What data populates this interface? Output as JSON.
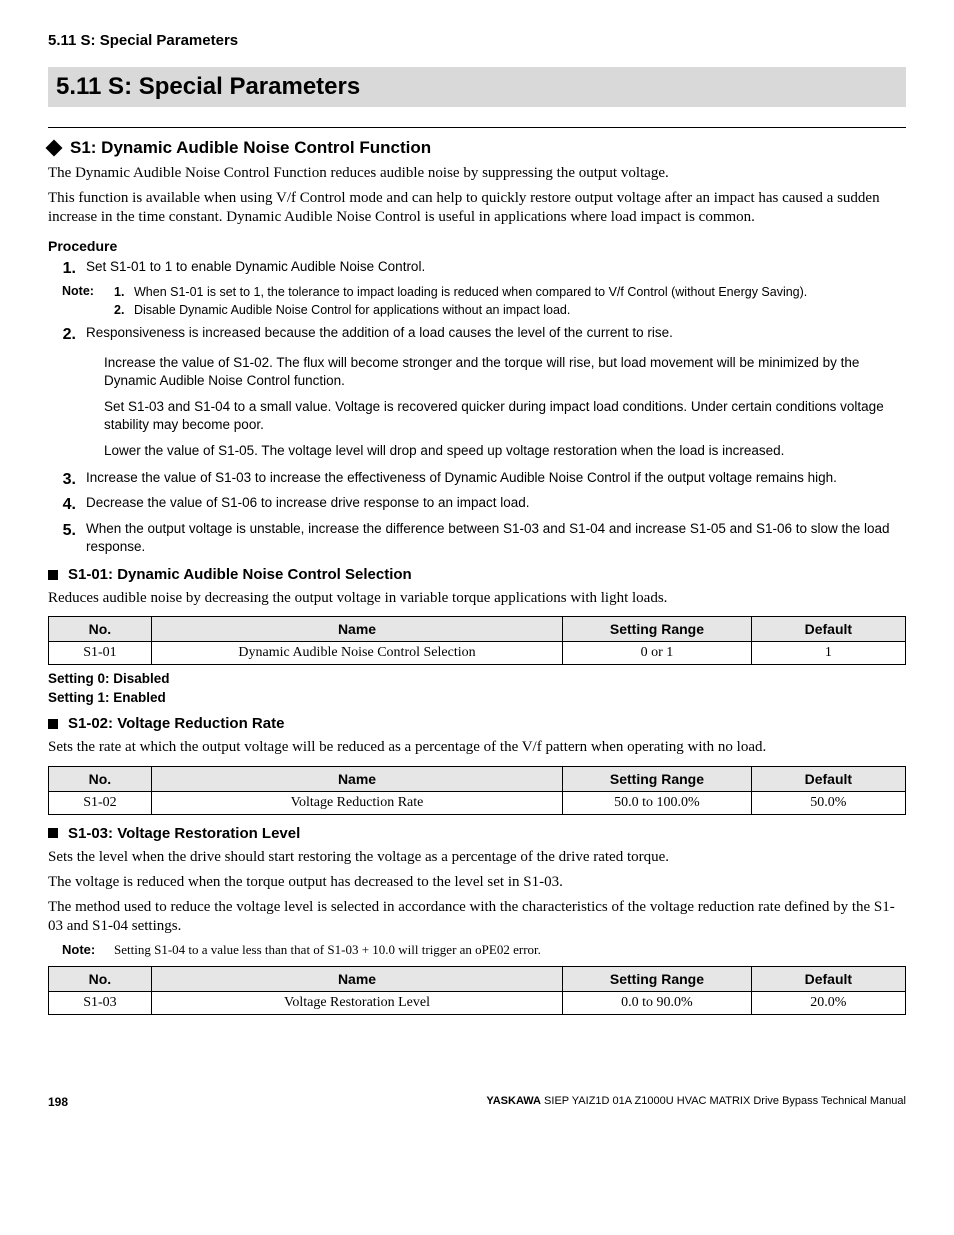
{
  "header": {
    "breadcrumb": "5.11 S: Special Parameters"
  },
  "section": {
    "banner": "5.11  S: Special Parameters"
  },
  "s1": {
    "heading": "S1: Dynamic Audible Noise Control Function",
    "intro1": "The Dynamic Audible Noise Control Function reduces audible noise by suppressing the output voltage.",
    "intro2": "This function is available when using V/f Control mode and can help to quickly restore output voltage after an impact has caused a sudden increase in the time constant. Dynamic Audible Noise Control is useful in applications where load impact is common.",
    "procedure_title": "Procedure",
    "steps": {
      "n1": "1.",
      "s1": "Set S1-01 to 1 to enable Dynamic Audible Noise Control.",
      "note_label": "Note:",
      "note1_n": "1.",
      "note1": "When S1-01 is set to 1, the tolerance to impact loading is reduced when compared to V/f Control (without Energy Saving).",
      "note2_n": "2.",
      "note2": "Disable Dynamic Audible Noise Control for applications without an impact load.",
      "n2": "2.",
      "s2": "Responsiveness is increased because the addition of a load causes the level of the current to rise.",
      "s2b": "Increase the value of S1-02. The flux will become stronger and the torque will rise, but load movement will be minimized by the Dynamic Audible Noise Control function.",
      "s2c": "Set S1-03 and S1-04 to a small value. Voltage is recovered quicker during impact load conditions. Under certain conditions voltage stability may become poor.",
      "s2d": "Lower the value of S1-05. The voltage level will drop and speed up voltage restoration when the load is increased.",
      "n3": "3.",
      "s3": "Increase the value of S1-03 to increase the effectiveness of Dynamic Audible Noise Control if the output voltage remains high.",
      "n4": "4.",
      "s4": "Decrease the value of S1-06 to increase drive response to an impact load.",
      "n5": "5.",
      "s5": "When the output voltage is unstable, increase the difference between S1-03 and S1-04 and increase S1-05 and S1-06 to slow the load response."
    }
  },
  "s1_01": {
    "heading": "S1-01: Dynamic Audible Noise Control Selection",
    "desc": "Reduces audible noise by decreasing the output voltage in variable torque applications with light loads.",
    "table": {
      "headers": {
        "no": "No.",
        "name": "Name",
        "range": "Setting Range",
        "def": "Default"
      },
      "row": {
        "no": "S1-01",
        "name": "Dynamic Audible Noise Control Selection",
        "range": "0 or 1",
        "def": "1"
      }
    },
    "setting0": "Setting 0: Disabled",
    "setting1": "Setting 1: Enabled"
  },
  "s1_02": {
    "heading": "S1-02: Voltage Reduction Rate",
    "desc": "Sets the rate at which the output voltage will be reduced as a percentage of the V/f pattern when operating with no load.",
    "table": {
      "headers": {
        "no": "No.",
        "name": "Name",
        "range": "Setting Range",
        "def": "Default"
      },
      "row": {
        "no": "S1-02",
        "name": "Voltage Reduction Rate",
        "range": "50.0 to 100.0%",
        "def": "50.0%"
      }
    }
  },
  "s1_03": {
    "heading": "S1-03: Voltage Restoration Level",
    "desc1": "Sets the level when the drive should start restoring the voltage as a percentage of the drive rated torque.",
    "desc2": "The voltage is reduced when the torque output has decreased to the level set in S1-03.",
    "desc3": "The method used to reduce the voltage level is selected in accordance with the characteristics of the voltage reduction rate defined by the S1-03 and S1-04 settings.",
    "note_label": "Note:",
    "note": "Setting S1-04 to a value less than that of S1-03 + 10.0 will trigger an oPE02 error.",
    "table": {
      "headers": {
        "no": "No.",
        "name": "Name",
        "range": "Setting Range",
        "def": "Default"
      },
      "row": {
        "no": "S1-03",
        "name": "Voltage Restoration Level",
        "range": "0.0 to 90.0%",
        "def": "20.0%"
      }
    }
  },
  "footer": {
    "page": "198",
    "brand": "YASKAWA",
    "manual": " SIEP YAIZ1D 01A Z1000U HVAC MATRIX Drive Bypass Technical Manual"
  }
}
